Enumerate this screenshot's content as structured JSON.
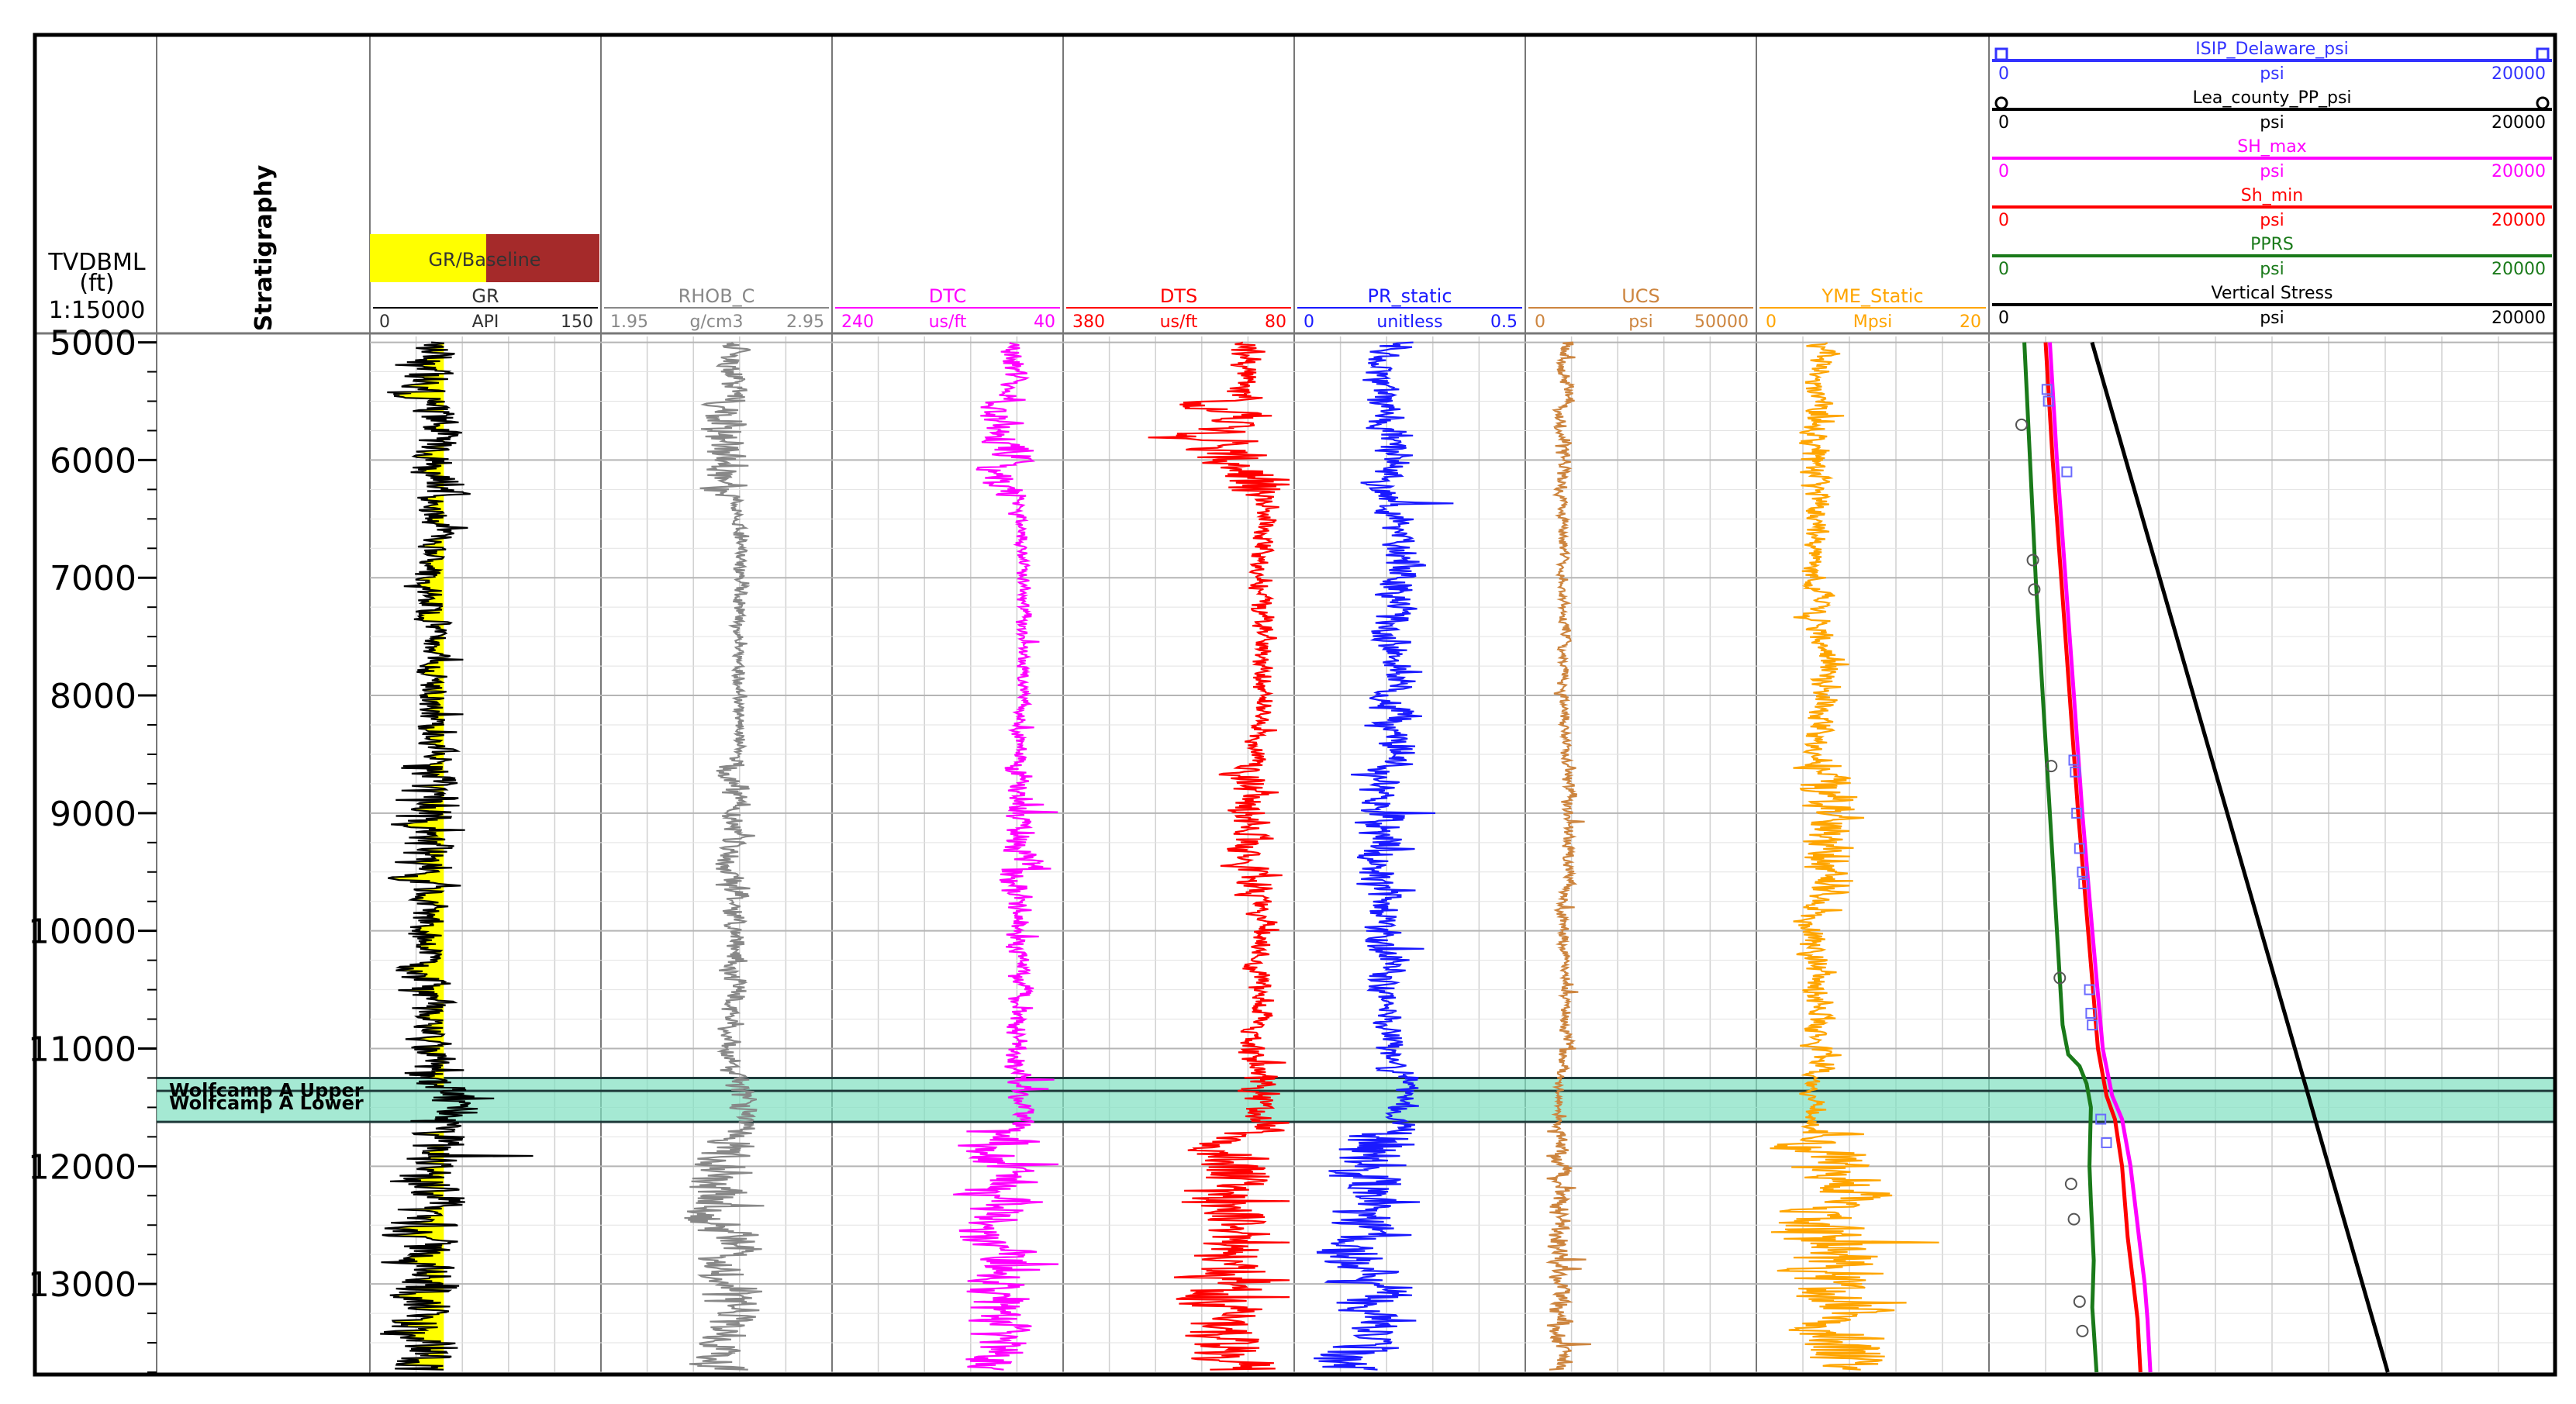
{
  "depth_track": {
    "label_line1": "TVDBML",
    "label_line2": "(ft)",
    "scale": "1:15000",
    "ticks": [
      "5000",
      "6000",
      "7000",
      "8000",
      "9000",
      "10000",
      "11000",
      "12000",
      "13000"
    ]
  },
  "strat_track": {
    "title": "Stratigraphy",
    "tops": [
      {
        "name": "Wolfcamp A Upper",
        "depth": 11250
      },
      {
        "name": "Wolfcamp A Lower",
        "depth": 11360
      }
    ],
    "interval_color": "#7fe0c0"
  },
  "tracks": [
    {
      "key": "gr",
      "title": "GR",
      "unit": "API",
      "min": "0",
      "max": "150",
      "color": "#000000",
      "fill_label": "GR/Baseline",
      "fill_left_color": "#ffff00",
      "fill_right_color": "#a52a2a"
    },
    {
      "key": "rhob",
      "title": "RHOB_C",
      "unit": "g/cm3",
      "min": "1.95",
      "max": "2.95",
      "color": "#888888"
    },
    {
      "key": "dtc",
      "title": "DTC",
      "unit": "us/ft",
      "min": "240",
      "max": "40",
      "color": "#ff00ff"
    },
    {
      "key": "dts",
      "title": "DTS",
      "unit": "us/ft",
      "min": "380",
      "max": "80",
      "color": "#ff0000"
    },
    {
      "key": "pr",
      "title": "PR_static",
      "unit": "unitless",
      "min": "0",
      "max": "0.5",
      "color": "#1a1aff"
    },
    {
      "key": "ucs",
      "title": "UCS",
      "unit": "psi",
      "min": "0",
      "max": "50000",
      "color": "#cd853f"
    },
    {
      "key": "yme",
      "title": "YME_Static",
      "unit": "Mpsi",
      "min": "0",
      "max": "20",
      "color": "#ffa500"
    }
  ],
  "pressure_track": {
    "curves": [
      {
        "title": "ISIP_Delaware_psi",
        "unit": "psi",
        "min": "0",
        "max": "20000",
        "color": "#3333ff",
        "style": "markers-square"
      },
      {
        "title": "Lea_county_PP_psi",
        "unit": "psi",
        "min": "0",
        "max": "20000",
        "color": "#000000",
        "style": "markers-circle"
      },
      {
        "title": "SH_max",
        "unit": "psi",
        "min": "0",
        "max": "20000",
        "color": "#ff00ff",
        "style": "line"
      },
      {
        "title": "Sh_min",
        "unit": "psi",
        "min": "0",
        "max": "20000",
        "color": "#ff0000",
        "style": "line"
      },
      {
        "title": "PPRS",
        "unit": "psi",
        "min": "0",
        "max": "20000",
        "color": "#1a7a1a",
        "style": "line"
      },
      {
        "title": "Vertical Stress",
        "unit": "psi",
        "min": "0",
        "max": "20000",
        "color": "#000000",
        "style": "line"
      }
    ]
  },
  "chart_data": {
    "type": "line",
    "title": "",
    "y_axis": {
      "label": "TVDBML (ft)",
      "range": [
        4950,
        13750
      ],
      "inverted": true
    },
    "series": [
      {
        "name": "Vertical Stress",
        "unit": "psi",
        "x": [
          3640,
          14090
        ],
        "depth": [
          5000,
          13750
        ]
      },
      {
        "name": "SH_max",
        "unit": "psi",
        "x": [
          2150,
          2400,
          2700,
          3000,
          3300,
          3650,
          4020,
          4350,
          4700,
          5000,
          5150,
          5300,
          5500,
          5600,
          5700
        ],
        "depth": [
          5000,
          6000,
          7000,
          8000,
          9000,
          10000,
          11000,
          11400,
          11600,
          12000,
          12300,
          12600,
          13000,
          13300,
          13750
        ]
      },
      {
        "name": "Sh_min",
        "unit": "psi",
        "x": [
          2000,
          2250,
          2550,
          2850,
          3150,
          3500,
          3850,
          4150,
          4450,
          4700,
          4800,
          4900,
          5100,
          5250,
          5350
        ],
        "depth": [
          5000,
          6000,
          7000,
          8000,
          9000,
          10000,
          11000,
          11400,
          11600,
          12000,
          12300,
          12600,
          13000,
          13300,
          13750
        ]
      },
      {
        "name": "PPRS",
        "unit": "psi",
        "x": [
          1250,
          1450,
          1650,
          1900,
          2150,
          2400,
          2600,
          2800,
          3200,
          3450,
          3600,
          3550,
          3600,
          3700,
          3650,
          3800
        ],
        "depth": [
          5000,
          6000,
          7000,
          8000,
          9000,
          10000,
          10800,
          11050,
          11150,
          11300,
          11500,
          12000,
          12300,
          12800,
          13200,
          13750
        ]
      },
      {
        "name": "ISIP_Delaware_psi",
        "unit": "psi",
        "x": [
          2050,
          2100,
          2750,
          3000,
          3050,
          3100,
          3200,
          3300,
          3350,
          3550,
          3600,
          3650,
          3950,
          4150
        ],
        "depth": [
          5400,
          5500,
          6100,
          8550,
          8650,
          9000,
          9300,
          9500,
          9600,
          10500,
          10700,
          10800,
          11600,
          11800
        ]
      },
      {
        "name": "Lea_county_PP_psi",
        "unit": "psi",
        "x": [
          1150,
          1550,
          1600,
          2200,
          2500,
          2900,
          3000,
          3200,
          3300
        ],
        "depth": [
          5700,
          6850,
          7100,
          8600,
          10400,
          12150,
          12450,
          13150,
          13400
        ]
      }
    ],
    "grid": true,
    "legend": "header-top"
  }
}
